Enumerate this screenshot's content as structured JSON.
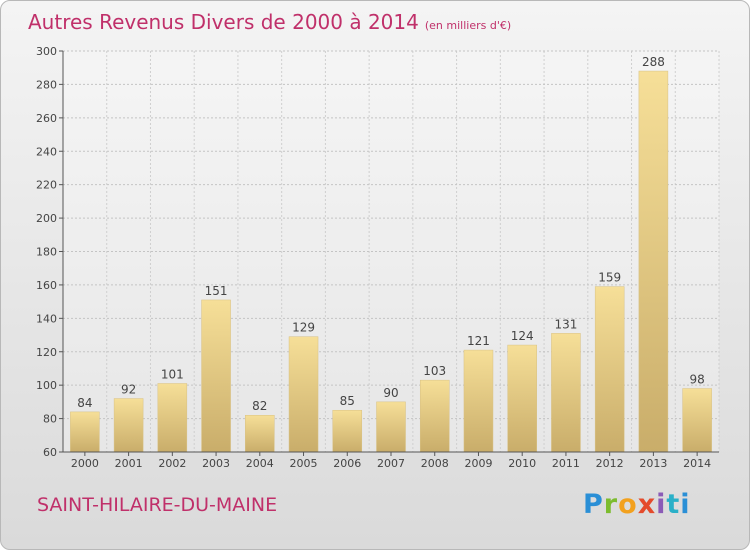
{
  "chart_data": {
    "type": "bar",
    "title": "Autres Revenus Divers de 2000 à 2014",
    "subtitle": "(en milliers d'€)",
    "categories": [
      "2000",
      "2001",
      "2002",
      "2003",
      "2004",
      "2005",
      "2006",
      "2007",
      "2008",
      "2009",
      "2010",
      "2011",
      "2012",
      "2013",
      "2014"
    ],
    "values": [
      84,
      92,
      101,
      151,
      82,
      129,
      85,
      90,
      103,
      121,
      124,
      131,
      159,
      288,
      98
    ],
    "ylim": [
      60,
      300
    ],
    "yticks": [
      60,
      80,
      100,
      120,
      140,
      160,
      180,
      200,
      220,
      240,
      260,
      280,
      300
    ],
    "grid": true,
    "bar_color": "#e6cd86"
  },
  "footer": {
    "commune": "SAINT-HILAIRE-DU-MAINE",
    "logo": "Proxiti"
  }
}
